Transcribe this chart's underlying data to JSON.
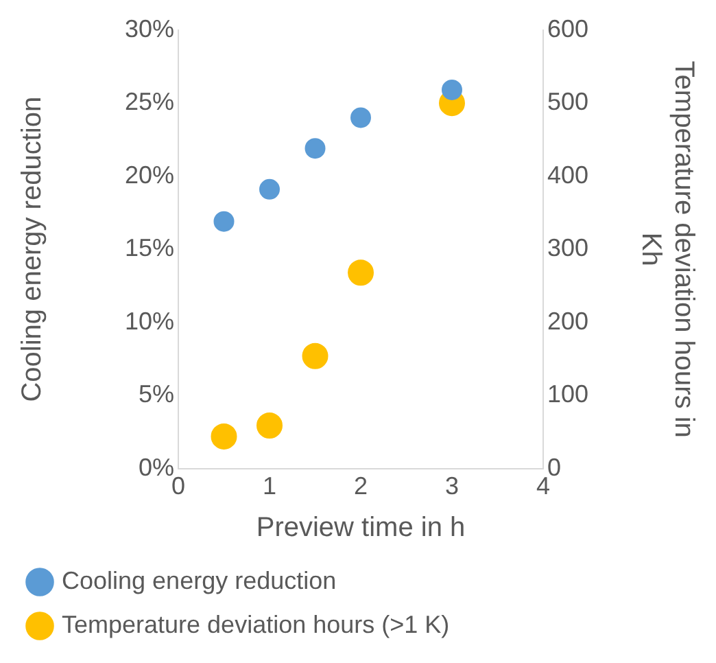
{
  "chart_data": {
    "type": "scatter",
    "xlabel": "Preview time in h",
    "ylabel": "Cooling energy reduction",
    "y2label": "Temperature deviation hours in Kh",
    "x": [
      0.5,
      1,
      1.5,
      2,
      3
    ],
    "series": [
      {
        "name": "Cooling energy reduction",
        "color": "#5b9bd5",
        "values": [
          16.9,
          19.1,
          21.9,
          24,
          25.9
        ]
      },
      {
        "name": "Temperature deviation hours (>1 K)",
        "color": "#ffc000",
        "axis": "y2",
        "values": [
          44,
          59,
          154,
          268,
          500
        ]
      }
    ],
    "xlim": [
      0,
      4
    ],
    "xticks": [
      0,
      1,
      2,
      3,
      4
    ],
    "ylim": [
      0,
      30
    ],
    "yticks": [
      {
        "value": 0,
        "label": "0%"
      },
      {
        "value": 5,
        "label": "5%"
      },
      {
        "value": 10,
        "label": "10%"
      },
      {
        "value": 15,
        "label": "15%"
      },
      {
        "value": 20,
        "label": "20%"
      },
      {
        "value": 25,
        "label": "25%"
      },
      {
        "value": 30,
        "label": "30%"
      }
    ],
    "y2lim": [
      0,
      600
    ],
    "y2ticks": [
      0,
      100,
      200,
      300,
      400,
      500,
      600
    ],
    "grid": false,
    "legend": "bottom",
    "marker": "circle"
  }
}
